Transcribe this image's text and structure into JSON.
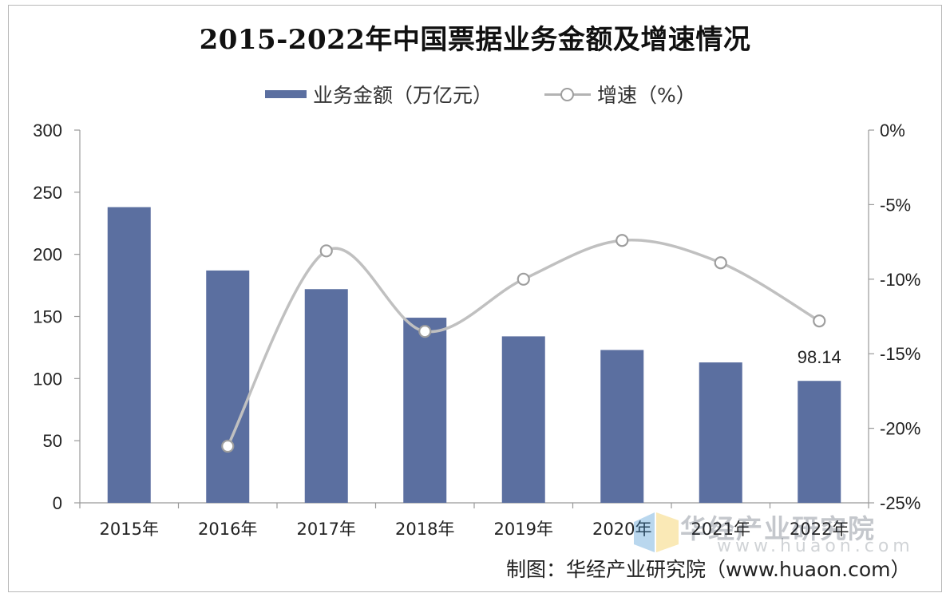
{
  "chart_data": {
    "type": "bar",
    "title": "2015-2022年中国票据业务金额及增速情况",
    "categories": [
      "2015年",
      "2016年",
      "2017年",
      "2018年",
      "2019年",
      "2020年",
      "2021年",
      "2022年"
    ],
    "series": [
      {
        "name": "业务金额（万亿元）",
        "type": "bar",
        "axis": "left",
        "values": [
          238,
          187,
          172,
          149,
          134,
          123,
          113,
          98.14
        ]
      },
      {
        "name": "增速（%）",
        "type": "line",
        "smooth": true,
        "axis": "right",
        "values": [
          null,
          -21.2,
          -8.1,
          -13.5,
          -10.0,
          -7.4,
          -8.9,
          -12.8
        ]
      }
    ],
    "data_labels": [
      {
        "category": "2022年",
        "series": "业务金额（万亿元）",
        "text": "98.14"
      }
    ],
    "y_left": {
      "min": 0,
      "max": 300,
      "ticks": [
        "0",
        "50",
        "100",
        "150",
        "200",
        "250",
        "300"
      ]
    },
    "y_right": {
      "min": -25,
      "max": 0,
      "ticks": [
        "0%",
        "-5%",
        "-10%",
        "-15%",
        "-20%",
        "-25%"
      ]
    },
    "legend_position": "top-center",
    "grid": false,
    "colors": {
      "bar": "#5b6fa0",
      "line": "#c0c0c0",
      "marker": "#9e9e9e"
    }
  },
  "footer": {
    "credit": "制图：华经产业研究院（www.huaon.com）"
  },
  "watermark": {
    "name": "华经产业研究院",
    "url": "www.huaon.com"
  }
}
